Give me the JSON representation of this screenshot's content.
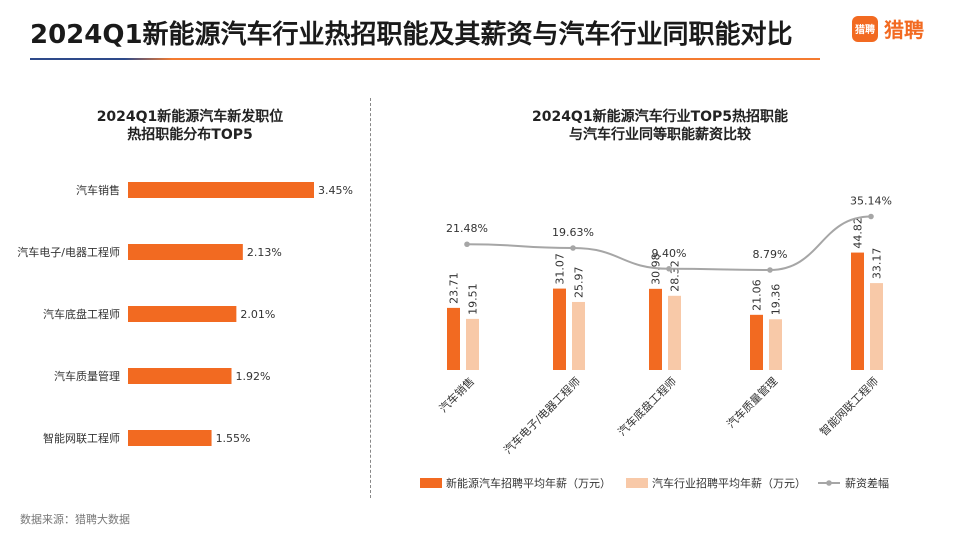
{
  "header": {
    "title": "2024Q1新能源汽车行业热招职能及其薪资与汽车行业同职能对比",
    "logo_mark": "猎聘",
    "logo_text": "猎聘"
  },
  "footer": {
    "source": "数据来源：猎聘大数据"
  },
  "colors": {
    "orange": "#f26a21",
    "peach": "#f8c9a8",
    "gray": "#a6a6a6",
    "text": "#333333"
  },
  "chart_data": [
    {
      "type": "bar",
      "orientation": "horizontal",
      "title_lines": [
        "2024Q1新能源汽车新发职位",
        "热招职能分布TOP5"
      ],
      "categories": [
        "汽车销售",
        "汽车电子/电器工程师",
        "汽车底盘工程师",
        "汽车质量管理",
        "智能网联工程师"
      ],
      "values": [
        3.45,
        2.13,
        2.01,
        1.92,
        1.55
      ],
      "value_labels": [
        "3.45%",
        "2.13%",
        "2.01%",
        "1.92%",
        "1.55%"
      ],
      "unit": "%"
    },
    {
      "type": "bar+line",
      "title_lines": [
        "2024Q1新能源汽车行业TOP5热招职能",
        "与汽车行业同等职能薪资比较"
      ],
      "categories": [
        "汽车销售",
        "汽车电子/电器工程师",
        "汽车底盘工程师",
        "汽车质量管理",
        "智能网联工程师"
      ],
      "series": [
        {
          "name": "新能源汽车招聘平均年薪（万元）",
          "values": [
            23.71,
            31.07,
            30.98,
            21.06,
            44.82
          ],
          "labels": [
            "23.71",
            "31.07",
            "30.98",
            "21.06",
            "44.82"
          ]
        },
        {
          "name": "汽车行业招聘平均年薪（万元）",
          "values": [
            19.51,
            25.97,
            28.32,
            19.36,
            33.17
          ],
          "labels": [
            "19.51",
            "25.97",
            "28.32",
            "19.36",
            "33.17"
          ]
        }
      ],
      "line": {
        "name": "薪资差幅",
        "values": [
          21.48,
          19.63,
          9.4,
          8.79,
          35.14
        ],
        "labels": [
          "21.48%",
          "19.63%",
          "9.40%",
          "8.79%",
          "35.14%"
        ]
      }
    }
  ]
}
